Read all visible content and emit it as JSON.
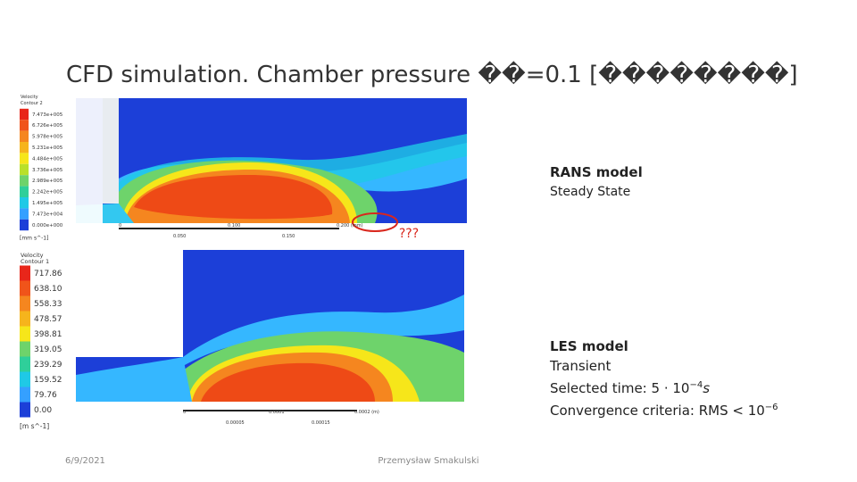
{
  "title": "CFD simulation. Chamber pressure ��=0.1 [��������]",
  "top_figure": {
    "legend_title": [
      "Velocity",
      "Contour 2"
    ],
    "legend_labels": [
      "7.473e+005",
      "6.726e+005",
      "5.978e+005",
      "5.231e+005",
      "4.484e+005",
      "3.736e+005",
      "2.989e+005",
      "2.242e+005",
      "1.495e+005",
      "7.473e+004",
      "0.000e+000"
    ],
    "legend_unit": "[mm s^-1]",
    "scale_top": [
      "0",
      "0.100",
      "0.200 (mm)"
    ],
    "scale_bottom": [
      "0.050",
      "0.150"
    ],
    "annotation": "???"
  },
  "top_caption": {
    "bold": "RANS model",
    "line2": "Steady State"
  },
  "bottom_figure": {
    "legend_title": [
      "Velocity",
      "Contour 1"
    ],
    "legend_labels": [
      "717.86",
      "638.10",
      "558.33",
      "478.57",
      "398.81",
      "319.05",
      "239.29",
      "159.52",
      "79.76",
      "0.00"
    ],
    "legend_unit": "[m s^-1]",
    "scale_top": [
      "0",
      "0.0001",
      "0.0002 (m)"
    ],
    "scale_bottom": [
      "0.00005",
      "0.00015"
    ]
  },
  "bottom_caption": {
    "bold": "LES model",
    "line2": "Transient",
    "line3": {
      "text": "Selected time: 5 · 10",
      "sup": "−4",
      "after": "s"
    },
    "line4": {
      "text": "Convergence criteria: RMS < 10",
      "sup": "−6"
    }
  },
  "footer": {
    "date": "6/9/2021",
    "author": "Przemysław Smakulski"
  }
}
